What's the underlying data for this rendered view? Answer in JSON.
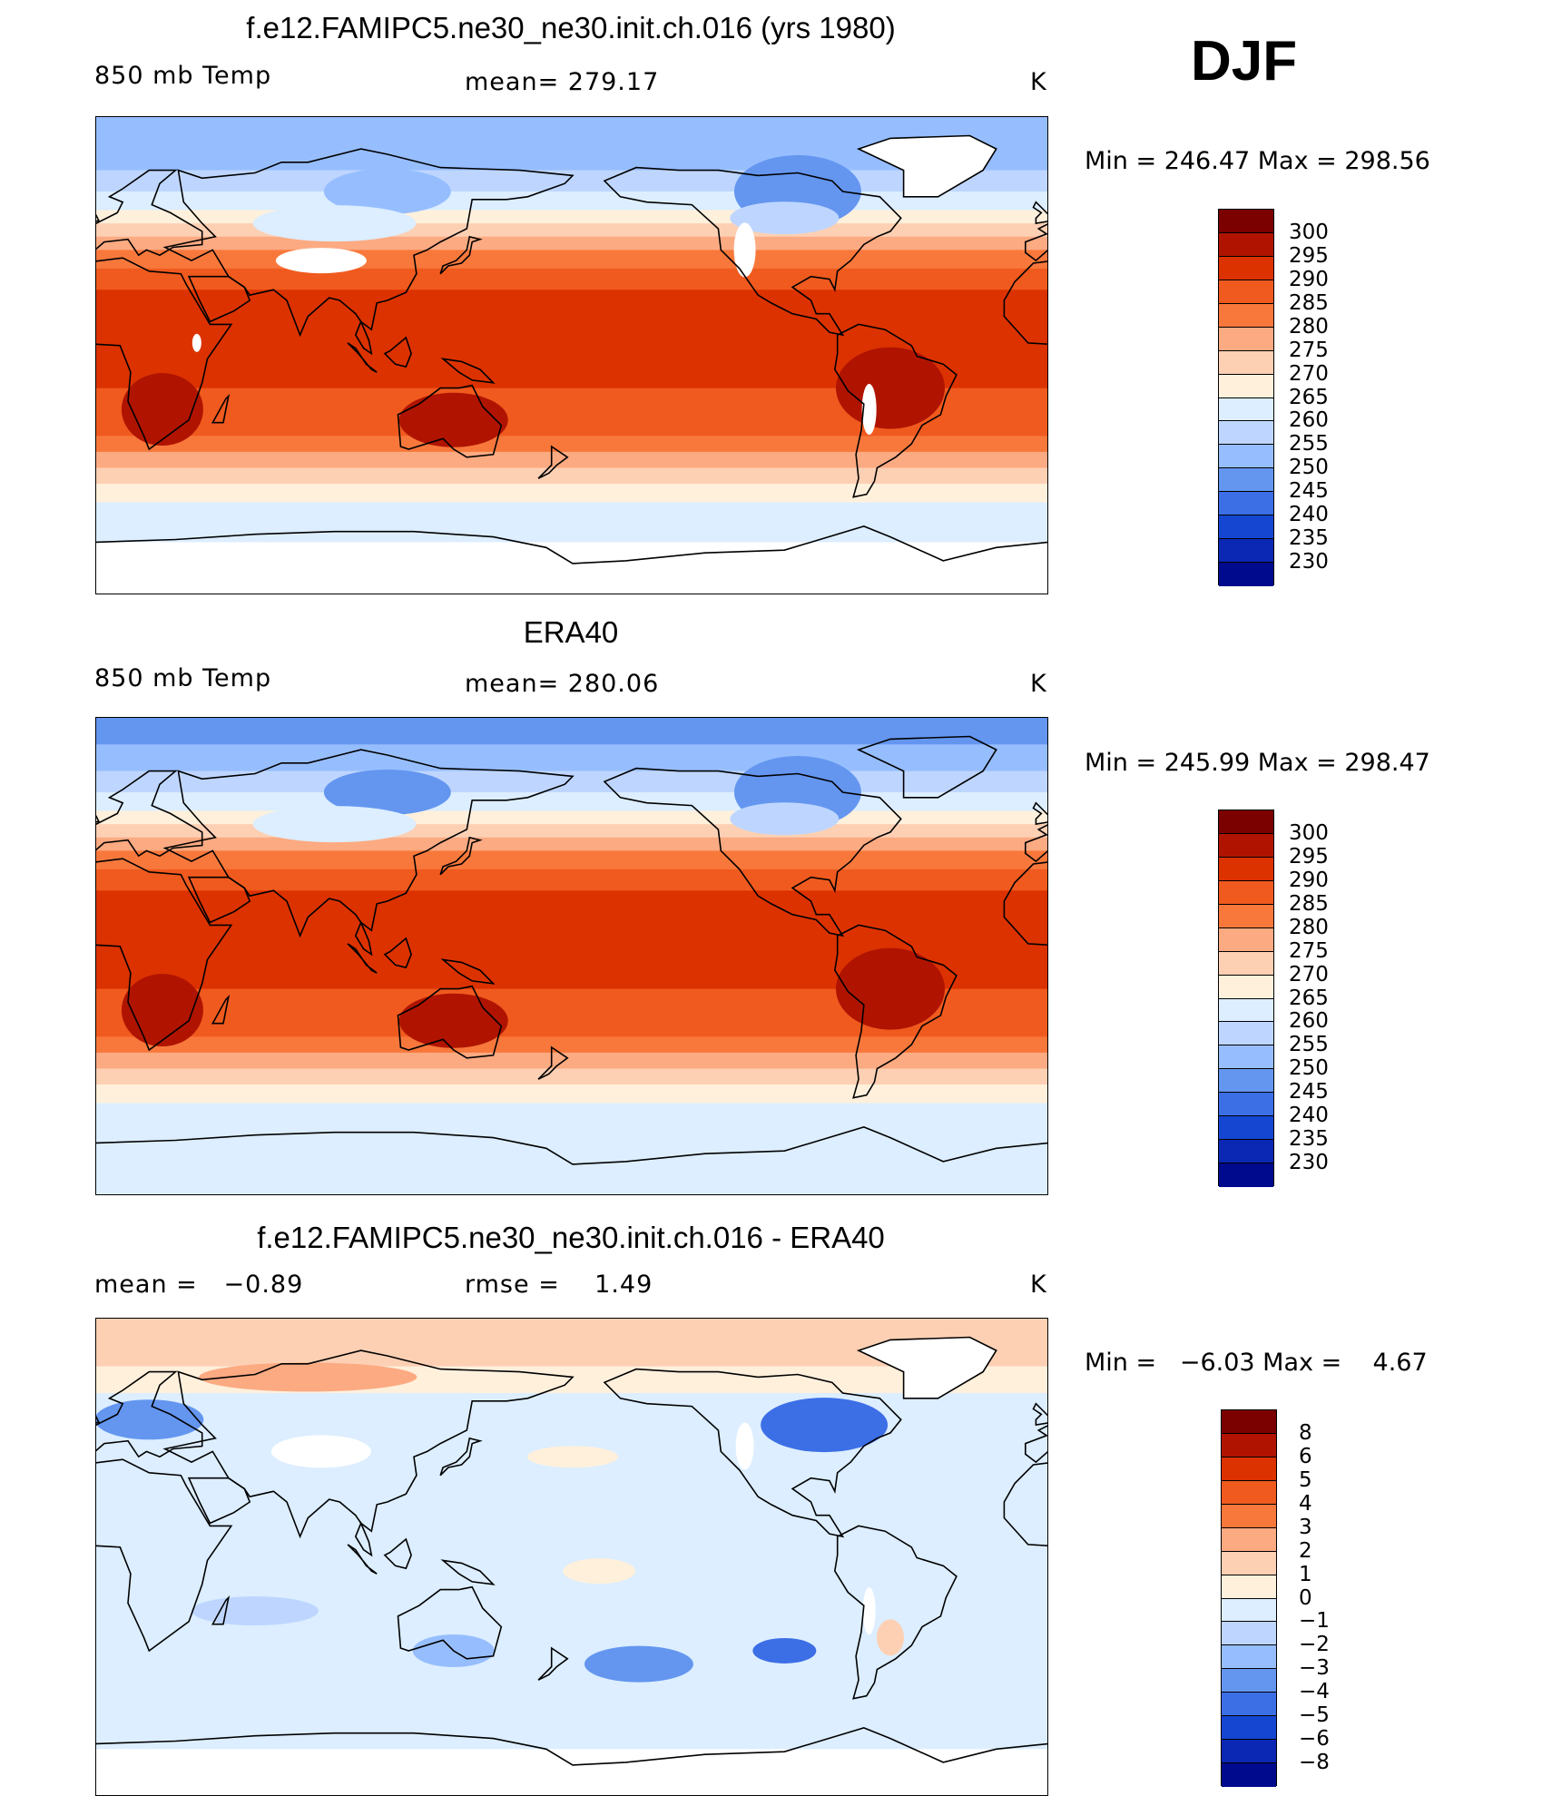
{
  "season": "DJF",
  "colors": {
    "temp_scale": [
      "#7b0000",
      "#b01400",
      "#dc3200",
      "#f05a1e",
      "#f8783c",
      "#fcaa82",
      "#fdd0b4",
      "#fff0dc",
      "#dceeff",
      "#bed6ff",
      "#96beff",
      "#6496f0",
      "#3c6ee6",
      "#1446d2",
      "#0a28b4",
      "#000a8c"
    ],
    "diff_scale": [
      "#7b0000",
      "#b01400",
      "#dc3200",
      "#f05a1e",
      "#f8783c",
      "#fcaa82",
      "#fdd0b4",
      "#fff0dc",
      "#dceeff",
      "#bed6ff",
      "#96beff",
      "#6496f0",
      "#3c6ee6",
      "#1446d2",
      "#0a28b4",
      "#000a8c"
    ]
  },
  "panels": [
    {
      "id": "model",
      "title": "f.e12.FAMIPC5.ne30_ne30.init.ch.016 (yrs 1980)",
      "left_label": "850 mb Temp",
      "center_label": "mean= 279.17",
      "units": "K",
      "min_max": "Min = 246.47 Max = 298.56",
      "colorbar_labels": [
        "300",
        "295",
        "290",
        "285",
        "280",
        "275",
        "270",
        "265",
        "260",
        "255",
        "250",
        "245",
        "240",
        "235",
        "230"
      ],
      "field": "temperature_model"
    },
    {
      "id": "obs",
      "title": "ERA40",
      "left_label": "850 mb Temp",
      "center_label": "mean= 280.06",
      "units": "K",
      "min_max": "Min = 245.99 Max = 298.47",
      "colorbar_labels": [
        "300",
        "295",
        "290",
        "285",
        "280",
        "275",
        "270",
        "265",
        "260",
        "255",
        "250",
        "245",
        "240",
        "235",
        "230"
      ],
      "field": "temperature_obs"
    },
    {
      "id": "diff",
      "title": "f.e12.FAMIPC5.ne30_ne30.init.ch.016 - ERA40",
      "left_label": "mean =   −0.89",
      "center_label": "rmse =    1.49",
      "units": "K",
      "min_max": "Min =   −6.03 Max =    4.67",
      "colorbar_labels": [
        "8",
        "6",
        "5",
        "4",
        "3",
        "2",
        "1",
        "0",
        "−1",
        "−2",
        "−3",
        "−4",
        "−5",
        "−6",
        "−8"
      ],
      "field": "difference"
    }
  ]
}
